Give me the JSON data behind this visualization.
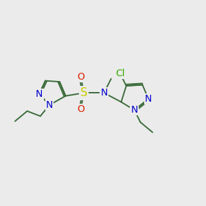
{
  "bg_color": "#ebebeb",
  "atom_colors": {
    "C": "#3a6b3a",
    "N": "#0000cc",
    "S": "#cccc00",
    "O": "#dd2200",
    "Cl": "#33aa00"
  },
  "bond_color": "#3a6b3a",
  "bond_width": 1.4,
  "font_size": 10
}
